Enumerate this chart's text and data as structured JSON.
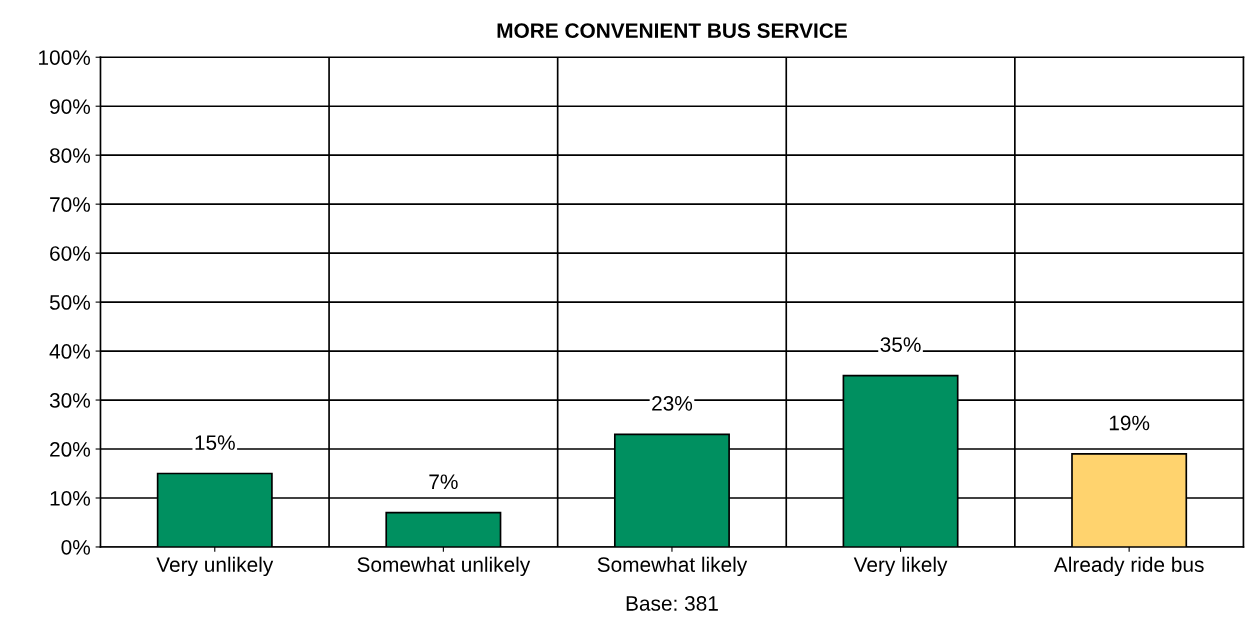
{
  "chart_data": {
    "type": "bar",
    "title": "MORE CONVENIENT BUS SERVICE",
    "xlabel": "Base: 381",
    "categories": [
      "Very unlikely",
      "Somewhat unlikely",
      "Somewhat likely",
      "Very likely",
      "Already ride bus"
    ],
    "values": [
      15,
      7,
      23,
      35,
      19
    ],
    "colors": [
      "#009060",
      "#009060",
      "#009060",
      "#009060",
      "#ffd36e"
    ],
    "value_labels": [
      "15%",
      "7%",
      "23%",
      "35%",
      "19%"
    ],
    "ylim": [
      0,
      100
    ],
    "yticks": [
      {
        "value": 0,
        "label": "0%"
      },
      {
        "value": 10,
        "label": "10%"
      },
      {
        "value": 20,
        "label": "20%"
      },
      {
        "value": 30,
        "label": "30%"
      },
      {
        "value": 40,
        "label": "40%"
      },
      {
        "value": 50,
        "label": "50%"
      },
      {
        "value": 60,
        "label": "60%"
      },
      {
        "value": 70,
        "label": "70%"
      },
      {
        "value": 80,
        "label": "80%"
      },
      {
        "value": 90,
        "label": "90%"
      },
      {
        "value": 100,
        "label": "100%"
      }
    ],
    "grid": true,
    "legend": false
  }
}
